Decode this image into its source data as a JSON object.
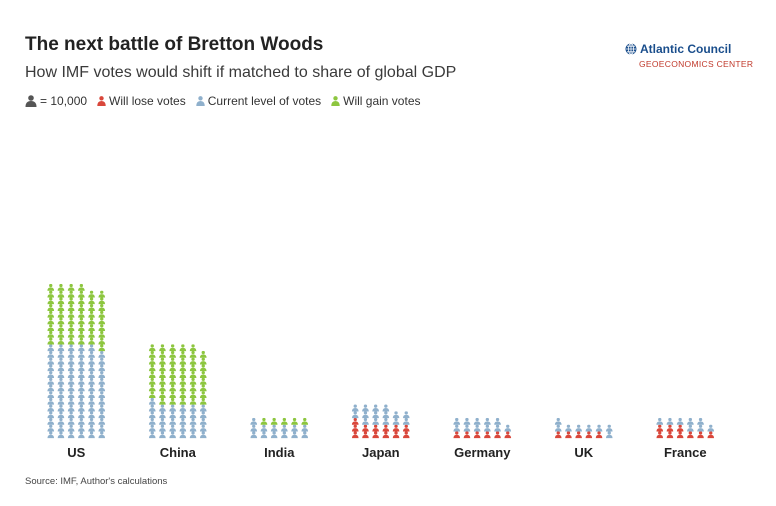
{
  "header": {
    "title": "The next battle of Bretton Woods",
    "subtitle": "How IMF votes would shift if matched to share of global GDP"
  },
  "legend": {
    "unit": "= 10,000",
    "lose": "Will lose votes",
    "current": "Current level of votes",
    "gain": "Will gain votes"
  },
  "logo": {
    "name": "Atlantic Council",
    "sub": "GEOECONOMICS CENTER"
  },
  "footer": {
    "source": "Source: IMF, Author's calculations"
  },
  "colors": {
    "gain": "#8dc63f",
    "current": "#8fb0cc",
    "lose": "#d9473b",
    "logo": "#1a4e8c"
  },
  "chart_data": {
    "type": "pictogram",
    "unit_votes": 10000,
    "columns_per_country": 6,
    "categories": [
      "US",
      "China",
      "India",
      "Japan",
      "Germany",
      "UK",
      "France"
    ],
    "series": [
      {
        "name": "Current level of votes",
        "values": [
          83,
          31,
          13,
          15,
          11,
          8,
          8
        ]
      },
      {
        "name": "Will gain votes",
        "values": [
          53,
          52,
          5,
          0,
          0,
          0,
          0
        ]
      },
      {
        "name": "Will lose votes",
        "values": [
          0,
          0,
          0,
          13,
          6,
          5,
          9
        ]
      }
    ]
  }
}
